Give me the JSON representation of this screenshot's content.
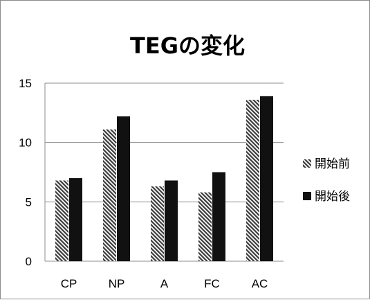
{
  "chart_data": {
    "type": "bar",
    "title": "TEGの変化",
    "categories": [
      "CP",
      "NP",
      "A",
      "FC",
      "AC"
    ],
    "series": [
      {
        "name": "開始前",
        "values": [
          6.8,
          11.1,
          6.3,
          5.8,
          13.6
        ],
        "pattern": "diagonal-hatch",
        "color": "#555555"
      },
      {
        "name": "開始後",
        "values": [
          7.0,
          12.2,
          6.8,
          7.5,
          13.9
        ],
        "pattern": "solid",
        "color": "#111111"
      }
    ],
    "yticks": [
      "0",
      "5",
      "10",
      "15"
    ],
    "ylim": [
      0,
      15
    ],
    "grid": true,
    "legend": "right"
  }
}
